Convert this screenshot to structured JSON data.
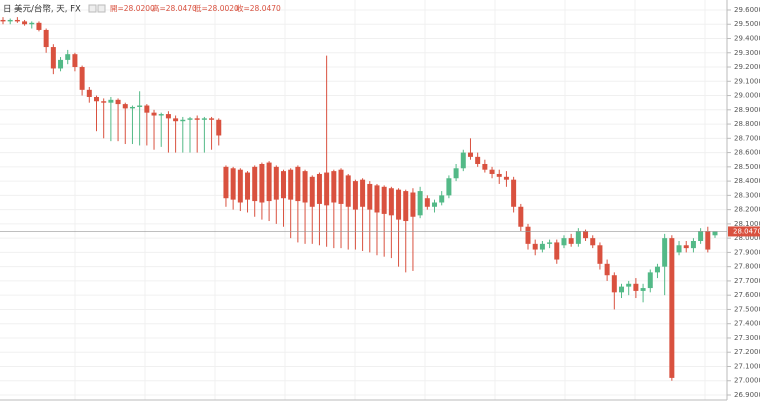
{
  "chart_data": {
    "type": "candlestick",
    "symbol_icon": "日",
    "title": "美元/台幣, 天, FX",
    "ohlc_readout": [
      "開=28.0200",
      "高=28.0470",
      "低=28.0020",
      "收=28.0470"
    ],
    "up_color": "#53b987",
    "down_color": "#d9513f",
    "grid": true,
    "ylim": [
      26.865,
      29.67
    ],
    "yticks": [
      {
        "value": 26.9,
        "label": "26.9000"
      },
      {
        "value": 27.0,
        "label": "27.0000"
      },
      {
        "value": 27.1,
        "label": "27.1000"
      },
      {
        "value": 27.2,
        "label": "27.2000"
      },
      {
        "value": 27.3,
        "label": "27.3000"
      },
      {
        "value": 27.4,
        "label": "27.4000"
      },
      {
        "value": 27.5,
        "label": "27.5000"
      },
      {
        "value": 27.6,
        "label": "27.6000"
      },
      {
        "value": 27.7,
        "label": "27.7000"
      },
      {
        "value": 27.8,
        "label": "27.8000"
      },
      {
        "value": 27.9,
        "label": "27.9000"
      },
      {
        "value": 28.0,
        "label": "28.0000"
      },
      {
        "value": 28.1,
        "label": "28.1000"
      },
      {
        "value": 28.2,
        "label": "28.2000"
      },
      {
        "value": 28.3,
        "label": "28.3000"
      },
      {
        "value": 28.4,
        "label": "28.4000"
      },
      {
        "value": 28.5,
        "label": "28.5000"
      },
      {
        "value": 28.6,
        "label": "28.6000"
      },
      {
        "value": 28.7,
        "label": "28.7000"
      },
      {
        "value": 28.8,
        "label": "28.8000"
      },
      {
        "value": 28.9,
        "label": "28.9000"
      },
      {
        "value": 29.0,
        "label": "29.0000"
      },
      {
        "value": 29.1,
        "label": "29.1000"
      },
      {
        "value": 29.2,
        "label": "29.2000"
      },
      {
        "value": 29.3,
        "label": "29.3000"
      },
      {
        "value": 29.4,
        "label": "29.4000"
      },
      {
        "value": 29.5,
        "label": "29.5000"
      },
      {
        "value": 29.6,
        "label": "29.6000"
      }
    ],
    "last_price": {
      "value": 28.047,
      "label": "28.0470"
    },
    "open": [
      29.53,
      29.52,
      29.53,
      29.52,
      29.5,
      29.51,
      29.46,
      29.34,
      29.19,
      29.25,
      29.29,
      29.2,
      29.04,
      28.99,
      28.96,
      28.95,
      28.97,
      28.94,
      28.91,
      28.92,
      28.93,
      28.88,
      28.86,
      28.87,
      28.84,
      28.82,
      28.83,
      28.84,
      28.83,
      28.84,
      28.83,
      28.5,
      28.49,
      28.48,
      28.46,
      28.5,
      28.52,
      28.53,
      28.5,
      28.47,
      28.48,
      28.5,
      28.47,
      28.43,
      28.45,
      28.46,
      28.47,
      28.48,
      28.44,
      28.4,
      28.41,
      28.38,
      28.37,
      28.36,
      28.35,
      28.34,
      28.33,
      28.32,
      28.16,
      28.28,
      28.22,
      28.25,
      28.3,
      28.42,
      28.49,
      28.6,
      28.57,
      28.52,
      28.48,
      28.45,
      28.43,
      28.41,
      28.22,
      28.08,
      27.96,
      27.92,
      27.96,
      27.97,
      27.95,
      28.0,
      27.96,
      28.05,
      28.0,
      27.95,
      27.82,
      27.74,
      27.62,
      27.66,
      27.68,
      27.63,
      27.65,
      27.76,
      27.8,
      28.0,
      27.9,
      27.95,
      27.93,
      27.98,
      28.05,
      28.02
    ],
    "high": [
      29.55,
      29.54,
      29.55,
      29.53,
      29.52,
      29.52,
      29.47,
      29.36,
      29.27,
      29.32,
      29.3,
      29.21,
      29.06,
      29.0,
      28.98,
      28.99,
      28.98,
      28.95,
      28.93,
      29.03,
      28.94,
      28.9,
      28.88,
      28.89,
      28.86,
      28.85,
      28.85,
      28.86,
      28.85,
      28.85,
      28.84,
      28.51,
      28.5,
      28.49,
      28.47,
      28.51,
      28.53,
      28.54,
      28.51,
      28.48,
      28.49,
      28.51,
      28.48,
      28.44,
      28.46,
      29.28,
      28.48,
      28.49,
      28.45,
      28.41,
      28.42,
      28.4,
      28.38,
      28.37,
      28.36,
      28.35,
      28.34,
      28.35,
      28.36,
      28.3,
      28.27,
      28.33,
      28.44,
      28.52,
      28.62,
      28.7,
      28.6,
      28.55,
      28.5,
      28.48,
      28.47,
      28.43,
      28.24,
      28.1,
      27.99,
      27.98,
      27.99,
      27.99,
      28.02,
      28.03,
      28.07,
      28.06,
      28.02,
      27.97,
      27.85,
      27.76,
      27.68,
      27.7,
      27.72,
      27.68,
      27.78,
      27.82,
      28.03,
      28.02,
      27.98,
      27.98,
      28.0,
      28.07,
      28.08,
      28.047
    ],
    "low": [
      29.5,
      29.5,
      29.51,
      29.49,
      29.47,
      29.45,
      29.3,
      29.15,
      29.17,
      29.22,
      29.17,
      29.0,
      28.95,
      28.75,
      28.7,
      28.68,
      28.68,
      28.66,
      28.66,
      28.65,
      28.65,
      28.62,
      28.64,
      28.6,
      28.6,
      28.6,
      28.6,
      28.6,
      28.6,
      28.62,
      28.65,
      28.22,
      28.2,
      28.19,
      28.18,
      28.15,
      28.13,
      28.12,
      28.1,
      28.08,
      28.0,
      27.97,
      27.96,
      27.96,
      27.95,
      27.94,
      27.93,
      27.93,
      27.92,
      27.92,
      27.91,
      27.9,
      27.88,
      27.87,
      27.86,
      27.8,
      27.76,
      27.77,
      28.14,
      28.2,
      28.18,
      28.23,
      28.28,
      28.4,
      28.47,
      28.55,
      28.5,
      28.46,
      28.42,
      28.38,
      28.36,
      28.18,
      28.05,
      27.92,
      27.88,
      27.9,
      27.93,
      27.82,
      27.93,
      27.94,
      27.94,
      27.98,
      27.93,
      27.78,
      27.7,
      27.5,
      27.58,
      27.6,
      27.58,
      27.55,
      27.62,
      27.72,
      27.6,
      27.0,
      27.88,
      27.9,
      27.9,
      27.96,
      27.9,
      28.002
    ],
    "close": [
      29.52,
      29.53,
      29.52,
      29.5,
      29.51,
      29.46,
      29.34,
      29.19,
      29.25,
      29.29,
      29.2,
      29.04,
      28.99,
      28.96,
      28.95,
      28.97,
      28.94,
      28.91,
      28.92,
      28.93,
      28.88,
      28.86,
      28.87,
      28.84,
      28.82,
      28.83,
      28.84,
      28.83,
      28.84,
      28.83,
      28.72,
      28.28,
      28.27,
      28.25,
      28.27,
      28.26,
      28.25,
      28.26,
      28.27,
      28.28,
      28.27,
      28.26,
      28.25,
      28.22,
      28.24,
      28.23,
      28.25,
      28.24,
      28.22,
      28.2,
      28.22,
      28.2,
      28.18,
      28.17,
      28.16,
      28.13,
      28.12,
      28.15,
      28.33,
      28.22,
      28.25,
      28.3,
      28.42,
      28.49,
      28.6,
      28.57,
      28.52,
      28.48,
      28.45,
      28.43,
      28.41,
      28.22,
      28.08,
      27.96,
      27.92,
      27.96,
      27.97,
      27.85,
      28.0,
      27.96,
      28.05,
      28.0,
      27.95,
      27.82,
      27.74,
      27.62,
      27.66,
      27.68,
      27.63,
      27.65,
      27.76,
      27.8,
      28.0,
      27.02,
      27.95,
      27.93,
      27.98,
      28.05,
      27.92,
      28.047
    ]
  }
}
